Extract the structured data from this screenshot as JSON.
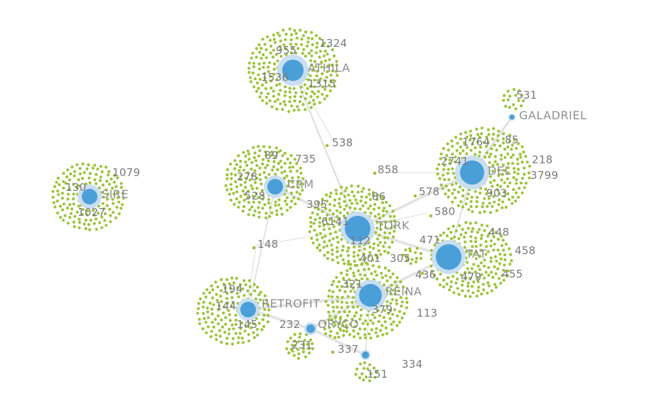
{
  "colors": {
    "hub": "#4a9fd8",
    "hub_halo": "#c9dff0",
    "leaf": "#9bc43a",
    "edge": "#dcdcdc",
    "text": "#8f8f8f"
  },
  "hubs": [
    {
      "id": "athila",
      "label": "ATHILA",
      "size": "large"
    },
    {
      "id": "crm",
      "label": "CRM",
      "size": "medium"
    },
    {
      "id": "sire",
      "label": "SIRE",
      "size": "medium"
    },
    {
      "id": "del",
      "label": "DEL",
      "size": "large"
    },
    {
      "id": "galadriel",
      "label": "GALADRIEL",
      "size": "tiny"
    },
    {
      "id": "tork",
      "label": "TORK",
      "size": "large"
    },
    {
      "id": "tat",
      "label": "TAT",
      "size": "large"
    },
    {
      "id": "reina",
      "label": "REINA",
      "size": "large"
    },
    {
      "id": "retrofit",
      "label": "RETROFIT",
      "size": "medium"
    },
    {
      "id": "oryco",
      "label": "ORYCO",
      "size": "small"
    },
    {
      "id": "n151",
      "label": "",
      "size": "tiny"
    }
  ],
  "numbers": {
    "athila": [
      "955",
      "1324",
      "1536",
      "1315"
    ],
    "crm": [
      "89",
      "735",
      "278",
      "528"
    ],
    "sire": [
      "1079",
      "130",
      "1027"
    ],
    "del": [
      "1764",
      "85",
      "2741",
      "218",
      "3799",
      "903"
    ],
    "galadriel": [
      "531"
    ],
    "tork": [
      "86",
      "6141",
      "112",
      "395"
    ],
    "tat": [
      "448",
      "458",
      "455",
      "479",
      "436",
      "471"
    ],
    "reina": [
      "321",
      "379",
      "113"
    ],
    "retrofit": [
      "194",
      "144",
      "145"
    ],
    "oryco": [
      "232",
      "231",
      "337"
    ],
    "bottom": [
      "334",
      "151"
    ],
    "loose": [
      "538",
      "858",
      "578",
      "580",
      "148",
      "401",
      "305"
    ]
  },
  "edges": [
    [
      "athila",
      "tork"
    ],
    [
      "crm",
      "tork"
    ],
    [
      "crm",
      "retrofit"
    ],
    [
      "del",
      "tork"
    ],
    [
      "del",
      "tat"
    ],
    [
      "del",
      "galadriel"
    ],
    [
      "tork",
      "tat"
    ],
    [
      "tork",
      "reina"
    ],
    [
      "tat",
      "reina"
    ],
    [
      "reina",
      "retrofit"
    ],
    [
      "reina",
      "oryco"
    ],
    [
      "retrofit",
      "oryco"
    ],
    [
      "oryco",
      "n151"
    ],
    [
      "reina",
      "n151"
    ]
  ]
}
